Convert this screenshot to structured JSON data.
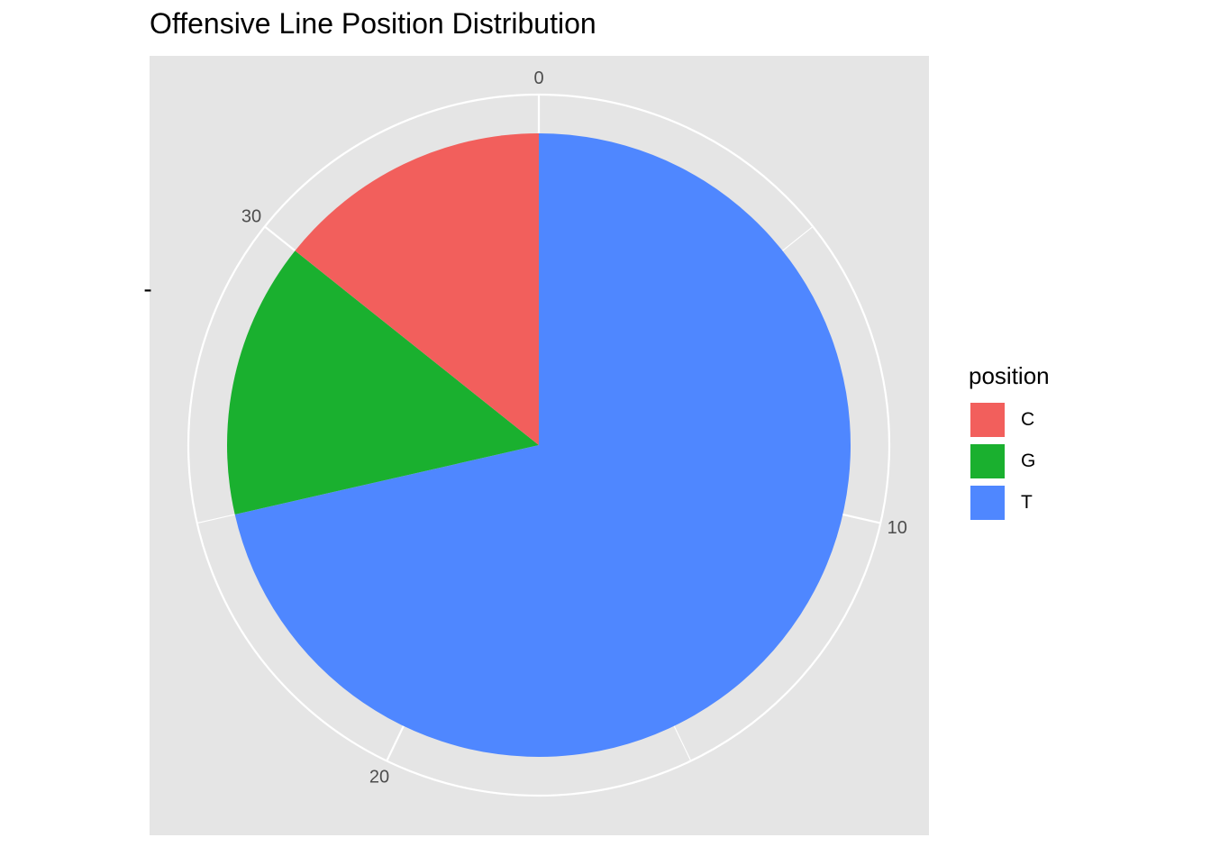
{
  "chart_data": {
    "type": "pie",
    "title": "Offensive Line Position Distribution",
    "coord": "polar",
    "categories": [
      "C",
      "G",
      "T"
    ],
    "values": [
      5,
      5,
      25
    ],
    "total": 35,
    "colors": [
      "#F25F5C",
      "#1AB02F",
      "#4F87FF"
    ],
    "theta_ticks": [
      0,
      10,
      20,
      30
    ],
    "ylabel": "-",
    "legend": {
      "title": "position",
      "placement": "right"
    },
    "background": "#E5E5E5",
    "grid": true
  }
}
